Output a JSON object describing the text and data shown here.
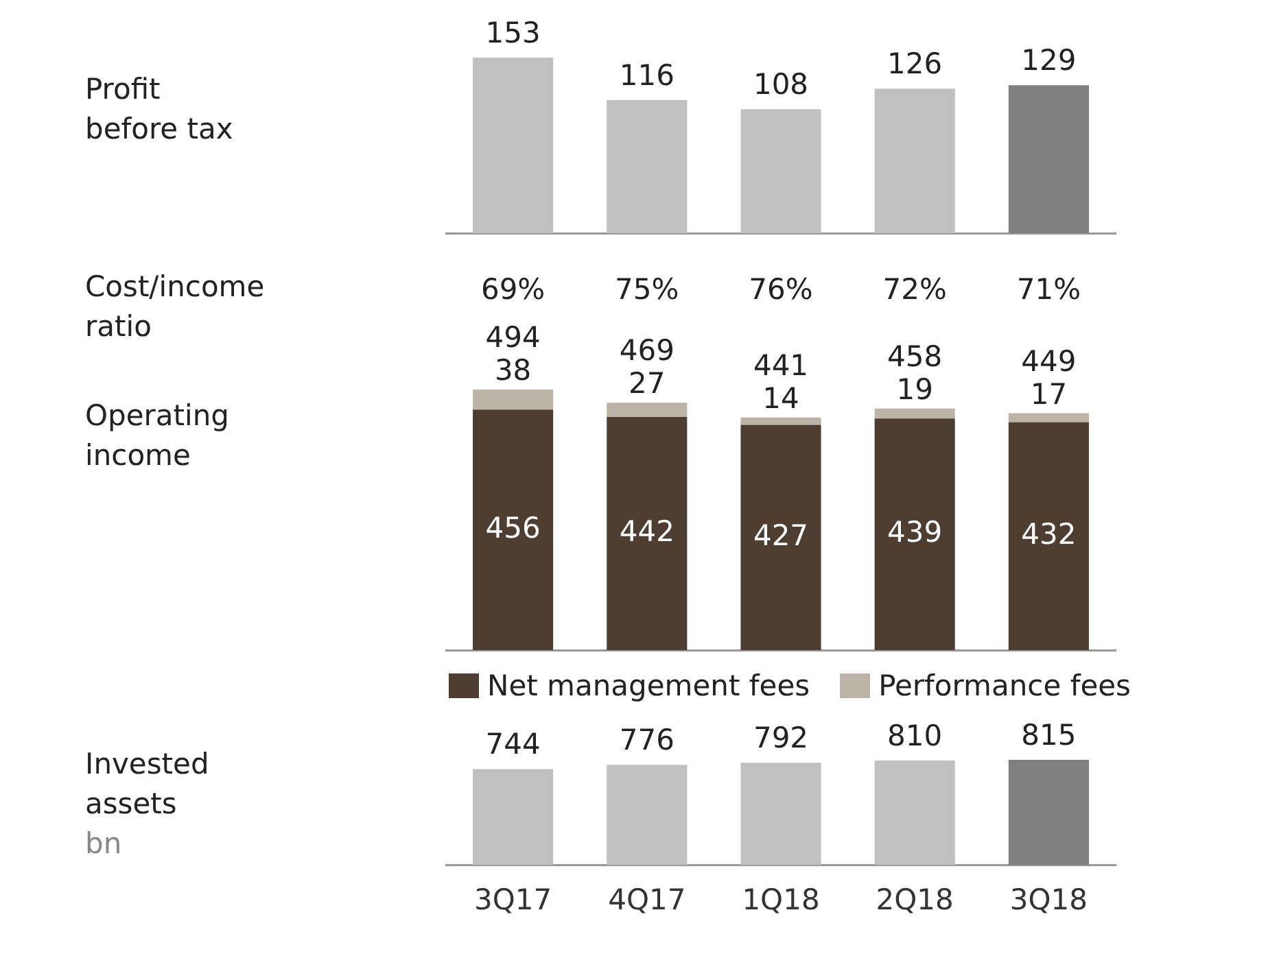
{
  "chart_data": [
    {
      "type": "bar",
      "ylabel": "Profit before tax",
      "categories": [
        null,
        null,
        null,
        null,
        null
      ],
      "values": [
        153,
        116,
        108,
        126,
        129
      ],
      "colors": [
        "#c0c0c0",
        "#c0c0c0",
        "#c0c0c0",
        "#c0c0c0",
        "#808080"
      ],
      "data_labels": true
    },
    {
      "type": "other",
      "ylabel": "Cost/income ratio",
      "categories": [
        null,
        null,
        null,
        null,
        null
      ],
      "values": [
        69,
        75,
        76,
        72,
        71
      ],
      "value_labels": [
        "69%",
        "75%",
        "76%",
        "72%",
        "71%"
      ]
    },
    {
      "type": "bar",
      "ylabel": "Operating income",
      "categories": [
        null,
        null,
        null,
        null,
        null
      ],
      "stacked": true,
      "data_labels": true,
      "legend": "bottom",
      "totals": [
        "494",
        "469",
        "441",
        "458",
        "449"
      ],
      "series": [
        {
          "name": "Net management fees",
          "color": "#4e3e32",
          "values": [
            456,
            442,
            427,
            439,
            432
          ]
        },
        {
          "name": "Performance fees",
          "color": "#bcb4a6",
          "values": [
            38,
            27,
            14,
            19,
            17
          ]
        }
      ]
    },
    {
      "type": "bar",
      "ylabel": "Invested assets",
      "annotations": [
        "bn"
      ],
      "categories": [
        "3Q17",
        "4Q17",
        "1Q18",
        "2Q18",
        "3Q18"
      ],
      "values": [
        744,
        776,
        792,
        810,
        815
      ],
      "colors": [
        "#c0c0c0",
        "#c0c0c0",
        "#c0c0c0",
        "#c0c0c0",
        "#808080"
      ],
      "data_labels": true,
      "tick_labels": "x"
    }
  ]
}
